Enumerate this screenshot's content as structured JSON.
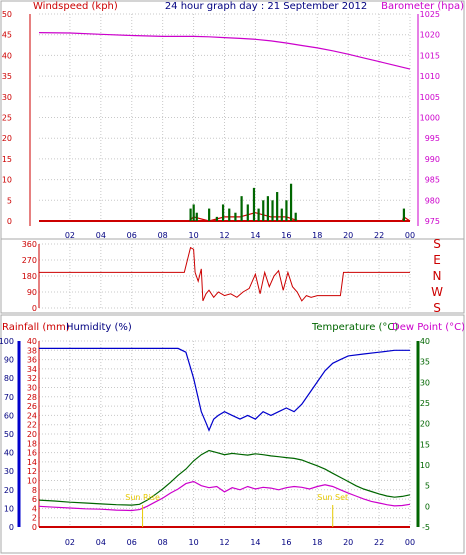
{
  "header": {
    "left_label": "Windspeed (kph)",
    "center_label": "24 hour graph day : 21 September 2012",
    "right_label": "Barometer (hpa)"
  },
  "bottom_header": {
    "rainfall_label": "Rainfall (mm)",
    "humidity_label": "Humidity (%)",
    "temperature_label": "Temperature (°C)",
    "dewpoint_label": "Dew Point (°C)"
  },
  "annotations": {
    "sunrise": "Sun Rise",
    "sunset": "Sun Set",
    "sunrise_hour": 6.7,
    "sunset_hour": 19.0
  },
  "colors": {
    "wind": "#cc0000",
    "gust": "#006600",
    "barometer": "#cc00cc",
    "direction": "#cc0000",
    "humidity": "#0000cc",
    "temperature": "#006600",
    "dewpoint": "#cc00cc",
    "rain": "#cc0000",
    "sun_annotation": "#e6c800",
    "header_blue": "#000080"
  },
  "chart_data": [
    {
      "type": "line",
      "panel": "wind-barometer",
      "x_ticks": [
        "02",
        "04",
        "06",
        "08",
        "10",
        "12",
        "14",
        "16",
        "18",
        "20",
        "22",
        "00"
      ],
      "x_range": [
        0,
        24
      ],
      "y_left": {
        "label": "Windspeed (kph)",
        "range": [
          0,
          50
        ],
        "ticks": [
          0,
          5,
          10,
          15,
          20,
          25,
          30,
          35,
          40,
          45,
          50
        ]
      },
      "y_right": {
        "label": "Barometer (hpa)",
        "range": [
          975,
          1025
        ],
        "ticks": [
          975,
          980,
          985,
          990,
          995,
          1000,
          1005,
          1010,
          1015,
          1020,
          1025
        ]
      },
      "series": [
        {
          "name": "Barometer (hpa)",
          "axis": "right",
          "x": [
            0,
            2,
            4,
            6,
            8,
            10,
            11,
            12,
            13,
            14,
            15,
            16,
            17,
            18,
            19,
            20,
            21,
            22,
            23,
            24
          ],
          "y": [
            1020.5,
            1020.4,
            1020.1,
            1019.8,
            1019.6,
            1019.6,
            1019.5,
            1019.3,
            1019.1,
            1018.9,
            1018.5,
            1018.0,
            1017.4,
            1016.8,
            1016.1,
            1015.3,
            1014.4,
            1013.5,
            1012.6,
            1011.7
          ]
        },
        {
          "name": "Windspeed (kph)",
          "axis": "left",
          "x": [
            0,
            9.7,
            10.0,
            11.0,
            12.0,
            13.0,
            14.0,
            15.0,
            16.0,
            16.8,
            17.0,
            23.5,
            23.6,
            24
          ],
          "y": [
            0,
            0,
            1,
            0,
            1,
            1,
            2,
            1,
            1,
            0,
            0,
            0,
            1,
            0
          ]
        },
        {
          "name": "Gust (kph)",
          "axis": "left",
          "type": "bar",
          "x": [
            9.8,
            10.0,
            10.2,
            11.0,
            11.5,
            11.9,
            12.3,
            12.7,
            13.1,
            13.5,
            13.9,
            14.2,
            14.5,
            14.8,
            15.1,
            15.4,
            15.7,
            16.0,
            16.3,
            16.6,
            23.6
          ],
          "y": [
            3,
            4,
            2,
            3,
            1,
            4,
            3,
            2,
            6,
            4,
            8,
            3,
            5,
            6,
            5,
            7,
            3,
            5,
            9,
            2,
            3
          ]
        }
      ]
    },
    {
      "type": "line",
      "panel": "wind-direction",
      "x_range": [
        0,
        24
      ],
      "y_left": {
        "range": [
          0,
          360
        ],
        "ticks": [
          0,
          90,
          180,
          270,
          360
        ]
      },
      "y_right_labels": [
        "S",
        "E",
        "N",
        "W",
        "S"
      ],
      "series": [
        {
          "name": "Wind direction",
          "x": [
            0,
            9.4,
            9.6,
            9.8,
            10.0,
            10.1,
            10.3,
            10.5,
            10.6,
            10.8,
            11.0,
            11.3,
            11.6,
            12.0,
            12.4,
            12.8,
            13.2,
            13.6,
            14.0,
            14.3,
            14.6,
            14.9,
            15.2,
            15.5,
            15.8,
            16.1,
            16.4,
            16.7,
            17.0,
            17.3,
            17.6,
            18.0,
            18.5,
            19.0,
            19.5,
            19.7,
            24
          ],
          "y": [
            200,
            200,
            270,
            340,
            330,
            200,
            150,
            220,
            40,
            80,
            100,
            60,
            90,
            70,
            80,
            60,
            90,
            110,
            190,
            80,
            200,
            120,
            180,
            210,
            100,
            200,
            120,
            90,
            40,
            70,
            60,
            70,
            70,
            70,
            70,
            200,
            200
          ]
        }
      ]
    },
    {
      "type": "line",
      "panel": "temperature-humidity",
      "x_ticks": [
        "02",
        "04",
        "06",
        "08",
        "10",
        "12",
        "14",
        "16",
        "18",
        "20",
        "22",
        "00"
      ],
      "x_range": [
        0,
        24
      ],
      "y_left_rain": {
        "label": "Rainfall (mm)",
        "range": [
          0,
          40
        ],
        "ticks": [
          0,
          2,
          4,
          6,
          8,
          10,
          12,
          14,
          16,
          18,
          20,
          22,
          24,
          26,
          28,
          30,
          32,
          34,
          36,
          38,
          40
        ]
      },
      "y_left_humidity": {
        "label": "Humidity (%)",
        "range": [
          0,
          100
        ],
        "ticks": [
          0,
          10,
          20,
          30,
          40,
          50,
          60,
          70,
          80,
          90,
          100
        ]
      },
      "y_right": {
        "label": "Temperature (°C)",
        "range": [
          -5,
          40
        ],
        "ticks": [
          -5,
          0,
          5,
          10,
          15,
          20,
          25,
          30,
          35,
          40
        ]
      },
      "series": [
        {
          "name": "Humidity (%)",
          "axis": "humidity",
          "x": [
            0,
            2,
            4,
            6,
            8,
            9,
            9.5,
            10,
            10.5,
            10.8,
            11.0,
            11.3,
            11.6,
            12,
            12.5,
            13,
            13.5,
            14,
            14.5,
            15,
            15.5,
            16,
            16.5,
            17,
            17.5,
            18,
            18.5,
            19,
            19.5,
            20,
            21,
            22,
            23,
            24
          ],
          "y": [
            96,
            96,
            96,
            96,
            96,
            96,
            94,
            80,
            62,
            56,
            52,
            58,
            60,
            62,
            60,
            58,
            60,
            58,
            62,
            60,
            62,
            64,
            62,
            66,
            72,
            78,
            84,
            88,
            90,
            92,
            93,
            94,
            95,
            95
          ]
        },
        {
          "name": "Temperature (°C)",
          "axis": "right",
          "x": [
            0,
            1,
            2,
            3,
            4,
            5,
            6,
            6.5,
            7,
            7.5,
            8,
            8.5,
            9,
            9.5,
            10,
            10.5,
            11,
            11.5,
            12,
            12.5,
            13,
            13.5,
            14,
            14.5,
            15,
            15.5,
            16,
            16.5,
            17,
            17.5,
            18,
            18.5,
            19,
            19.5,
            20,
            20.5,
            21,
            21.5,
            22,
            22.5,
            23,
            23.5,
            24
          ],
          "y": [
            1.5,
            1.3,
            1.0,
            0.8,
            0.6,
            0.4,
            0.3,
            0.5,
            1.5,
            2.8,
            4.2,
            5.8,
            7.5,
            9.0,
            11.0,
            12.5,
            13.5,
            13.0,
            12.5,
            12.8,
            12.6,
            12.4,
            12.7,
            12.5,
            12.2,
            12.0,
            11.8,
            11.6,
            11.2,
            10.5,
            9.8,
            9.0,
            8.0,
            7.0,
            6.0,
            5.0,
            4.2,
            3.6,
            3.0,
            2.5,
            2.2,
            2.4,
            2.8
          ]
        },
        {
          "name": "Dew Point (°C)",
          "axis": "right",
          "x": [
            0,
            1,
            2,
            3,
            4,
            5,
            6,
            6.5,
            7,
            7.5,
            8,
            8.5,
            9,
            9.5,
            10,
            10.5,
            11,
            11.5,
            12,
            12.5,
            13,
            13.5,
            14,
            14.5,
            15,
            15.5,
            16,
            16.5,
            17,
            17.5,
            18,
            18.5,
            19,
            19.5,
            20,
            20.5,
            21,
            21.5,
            22,
            22.5,
            23,
            23.5,
            24
          ],
          "y": [
            0.0,
            -0.2,
            -0.4,
            -0.6,
            -0.7,
            -0.9,
            -1.0,
            -0.8,
            0.0,
            1.0,
            2.0,
            3.2,
            4.2,
            5.5,
            6.0,
            5.0,
            4.5,
            4.8,
            3.5,
            4.5,
            4.0,
            4.8,
            4.2,
            4.6,
            4.4,
            4.0,
            4.5,
            4.8,
            4.6,
            4.2,
            4.8,
            5.2,
            4.8,
            4.0,
            3.2,
            2.5,
            1.8,
            1.2,
            0.8,
            0.4,
            0.1,
            0.2,
            0.5
          ]
        },
        {
          "name": "Rainfall (mm)",
          "axis": "rain",
          "x": [
            0,
            24
          ],
          "y": [
            0,
            0
          ]
        }
      ]
    }
  ]
}
